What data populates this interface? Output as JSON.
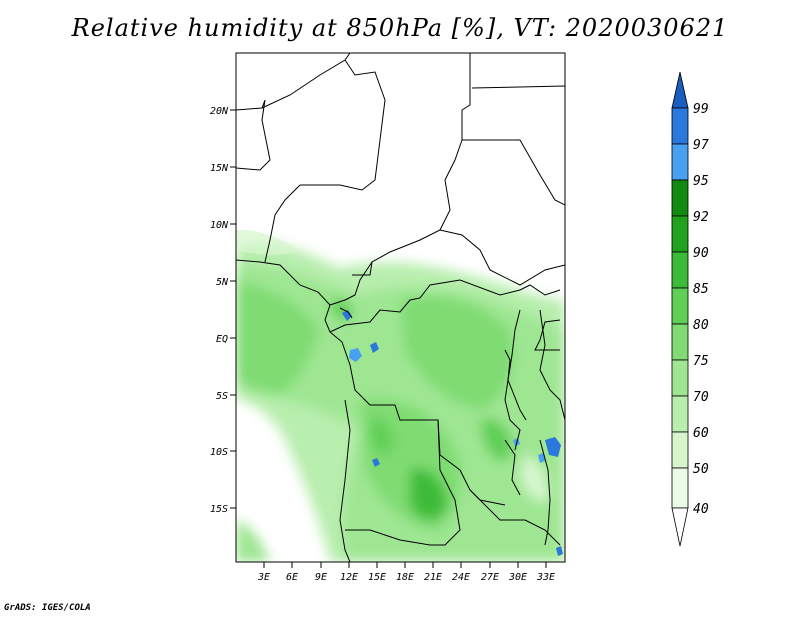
{
  "title": "Relative humidity at 850hPa [%], VT: 2020030621",
  "credit": "GrADS: IGES/COLA",
  "map": {
    "lon_range": [
      0,
      35
    ],
    "lat_range": [
      -20,
      24
    ],
    "x_ticks": [
      "3E",
      "6E",
      "9E",
      "12E",
      "15E",
      "18E",
      "21E",
      "24E",
      "27E",
      "30E",
      "33E"
    ],
    "y_ticks": [
      "20N",
      "15N",
      "10N",
      "5N",
      "EQ",
      "5S",
      "10S",
      "15S"
    ]
  },
  "colorbar": {
    "levels": [
      "40",
      "50",
      "60",
      "70",
      "75",
      "80",
      "85",
      "90",
      "92",
      "95",
      "97",
      "99"
    ],
    "colors": [
      "#ffffff",
      "#eafbe6",
      "#d7f6ce",
      "#b8eeae",
      "#9fe693",
      "#7fdb72",
      "#5fcf55",
      "#3dbb38",
      "#21a21f",
      "#118a12",
      "#4aa0f0",
      "#2a78dc",
      "#1a5cc0"
    ]
  }
}
